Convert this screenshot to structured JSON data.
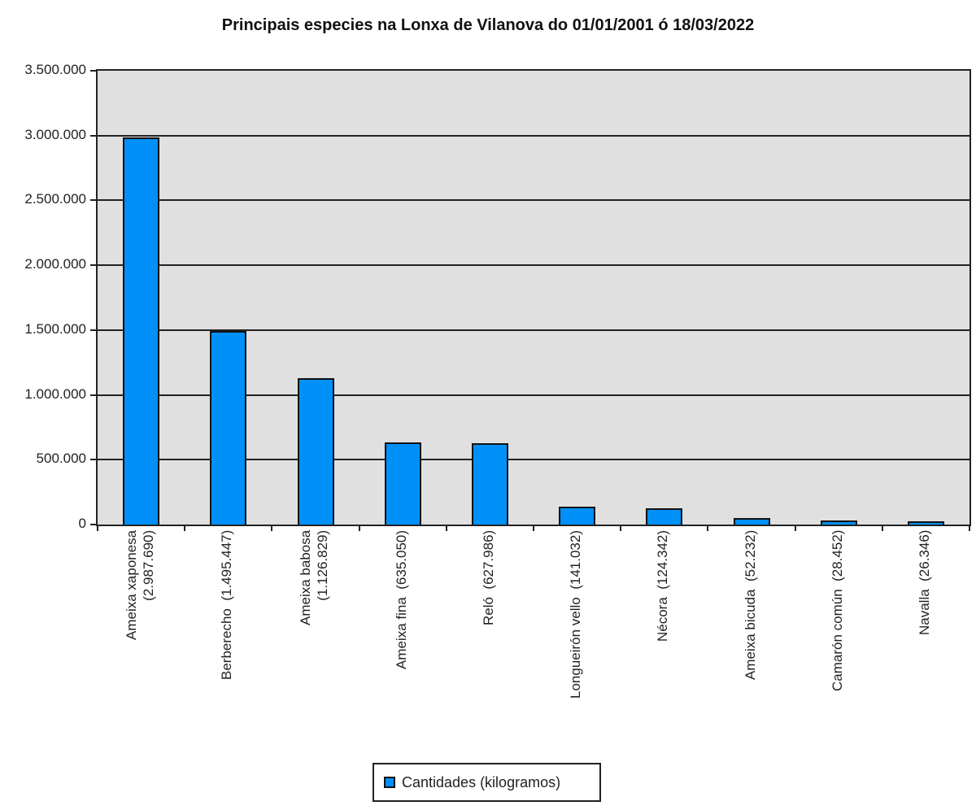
{
  "chart_data": {
    "type": "bar",
    "title": "Principais especies na Lonxa de Vilanova do 01/01/2001 ó 18/03/2022",
    "xlabel": "",
    "ylabel": "",
    "ylim": [
      0,
      3500000
    ],
    "yticks": [
      "0",
      "500.000",
      "1.000.000",
      "1.500.000",
      "2.000.000",
      "2.500.000",
      "3.000.000",
      "3.500.000"
    ],
    "grid": true,
    "legend_position": "bottom",
    "bar_color": "#0090f8",
    "plot_background": "#e0e0e0",
    "categories": [
      "Ameixa xaponesa\n(2.987.690)",
      "Berberecho  (1.495.447)",
      "Ameixa babosa\n(1.126.829)",
      "Ameixa fina  (635.050)",
      "Reló  (627.986)",
      "Longueirón vello  (141.032)",
      "Nécora  (124.342)",
      "Ameixa bicuda  (52.232)",
      "Camarón común  (28.452)",
      "Navalla  (26.346)"
    ],
    "series": [
      {
        "name": "Cantidades (kilogramos)",
        "values": [
          2987690,
          1495447,
          1126829,
          635050,
          627986,
          141032,
          124342,
          52232,
          28452,
          26346
        ]
      }
    ]
  },
  "legend": {
    "label": "Cantidades (kilogramos)"
  }
}
